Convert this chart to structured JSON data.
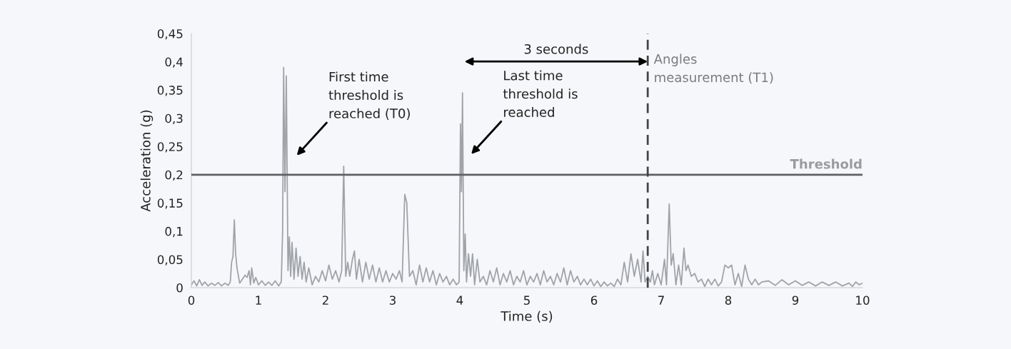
{
  "chart_data": {
    "type": "line",
    "xlabel": "Time (s)",
    "ylabel": "Acceleration (g)",
    "xlim": [
      0,
      10
    ],
    "xticks": [
      0,
      1,
      2,
      3,
      4,
      5,
      6,
      7,
      8,
      9,
      10
    ],
    "ylim": [
      0,
      0.45
    ],
    "yticks": [
      0,
      {
        "value": 0.05,
        "label": "0,05"
      },
      {
        "value": 0.1,
        "label": "0,1"
      },
      {
        "value": 0.15,
        "label": "0,15"
      },
      {
        "value": 0.2,
        "label": "0,2"
      },
      {
        "value": 0.25,
        "label": "0,25"
      },
      {
        "value": 0.3,
        "label": "0,3"
      },
      {
        "value": 0.35,
        "label": "0,35"
      },
      {
        "value": 0.4,
        "label": "0,4"
      },
      {
        "value": 0.45,
        "label": "0,45"
      }
    ],
    "grid": false,
    "marker": "none",
    "line_style": "solid",
    "series": [
      {
        "color": "#a0a3a8",
        "x": [
          0,
          0.04,
          0.08,
          0.12,
          0.16,
          0.2,
          0.25,
          0.3,
          0.35,
          0.4,
          0.45,
          0.5,
          0.55,
          0.58,
          0.6,
          0.62,
          0.64,
          0.66,
          0.68,
          0.72,
          0.76,
          0.8,
          0.83,
          0.86,
          0.88,
          0.9,
          0.93,
          0.96,
          1.0,
          1.05,
          1.1,
          1.15,
          1.2,
          1.25,
          1.3,
          1.34,
          1.36,
          1.375,
          1.395,
          1.415,
          1.44,
          1.46,
          1.48,
          1.5,
          1.53,
          1.56,
          1.59,
          1.62,
          1.65,
          1.68,
          1.71,
          1.75,
          1.8,
          1.85,
          1.9,
          1.95,
          2.0,
          2.05,
          2.1,
          2.15,
          2.2,
          2.24,
          2.27,
          2.3,
          2.33,
          2.36,
          2.4,
          2.43,
          2.46,
          2.5,
          2.55,
          2.6,
          2.65,
          2.7,
          2.75,
          2.8,
          2.85,
          2.9,
          2.95,
          3.0,
          3.05,
          3.1,
          3.14,
          3.18,
          3.21,
          3.25,
          3.3,
          3.35,
          3.4,
          3.45,
          3.5,
          3.55,
          3.6,
          3.65,
          3.7,
          3.75,
          3.8,
          3.85,
          3.9,
          3.95,
          3.99,
          4.01,
          4.025,
          4.04,
          4.06,
          4.08,
          4.1,
          4.13,
          4.16,
          4.19,
          4.22,
          4.26,
          4.3,
          4.35,
          4.4,
          4.45,
          4.5,
          4.55,
          4.6,
          4.65,
          4.7,
          4.75,
          4.8,
          4.85,
          4.9,
          4.95,
          5.0,
          5.05,
          5.1,
          5.15,
          5.2,
          5.25,
          5.3,
          5.35,
          5.4,
          5.45,
          5.5,
          5.55,
          5.6,
          5.65,
          5.7,
          5.75,
          5.8,
          5.85,
          5.9,
          5.95,
          6.0,
          6.05,
          6.1,
          6.15,
          6.2,
          6.25,
          6.3,
          6.35,
          6.4,
          6.45,
          6.5,
          6.55,
          6.6,
          6.65,
          6.7,
          6.73,
          6.76,
          6.8,
          6.84,
          6.87,
          6.9,
          6.95,
          7.0,
          7.05,
          7.08,
          7.12,
          7.15,
          7.18,
          7.22,
          7.26,
          7.3,
          7.34,
          7.37,
          7.4,
          7.45,
          7.5,
          7.55,
          7.6,
          7.65,
          7.7,
          7.75,
          7.8,
          7.85,
          7.9,
          7.95,
          8.0,
          8.05,
          8.1,
          8.15,
          8.2,
          8.25,
          8.3,
          8.35,
          8.4,
          8.45,
          8.5,
          8.6,
          8.7,
          8.8,
          8.9,
          9.0,
          9.1,
          9.2,
          9.3,
          9.4,
          9.5,
          9.6,
          9.7,
          9.8,
          9.85,
          9.9,
          9.95,
          10
        ],
        "values": [
          0.005,
          0.012,
          0.003,
          0.014,
          0.004,
          0.01,
          0.003,
          0.008,
          0.004,
          0.009,
          0.003,
          0.008,
          0.004,
          0.01,
          0.045,
          0.055,
          0.12,
          0.06,
          0.035,
          0.008,
          0.015,
          0.022,
          0.018,
          0.03,
          0.005,
          0.035,
          0.008,
          0.018,
          0.005,
          0.012,
          0.004,
          0.01,
          0.004,
          0.012,
          0.003,
          0.01,
          0.1,
          0.39,
          0.17,
          0.375,
          0.03,
          0.09,
          0.02,
          0.08,
          0.015,
          0.07,
          0.02,
          0.055,
          0.015,
          0.045,
          0.01,
          0.035,
          0.005,
          0.02,
          0.01,
          0.03,
          0.012,
          0.04,
          0.015,
          0.03,
          0.01,
          0.03,
          0.215,
          0.02,
          0.045,
          0.02,
          0.05,
          0.065,
          0.015,
          0.05,
          0.01,
          0.045,
          0.015,
          0.04,
          0.01,
          0.035,
          0.01,
          0.03,
          0.01,
          0.025,
          0.015,
          0.03,
          0.01,
          0.165,
          0.15,
          0.02,
          0.03,
          0.005,
          0.04,
          0.01,
          0.035,
          0.01,
          0.03,
          0.005,
          0.025,
          0.01,
          0.02,
          0.005,
          0.015,
          0.005,
          0.01,
          0.29,
          0.17,
          0.345,
          0.03,
          0.095,
          0.01,
          0.06,
          0.02,
          0.06,
          0.005,
          0.05,
          0.01,
          0.02,
          0.005,
          0.03,
          0.01,
          0.035,
          0.005,
          0.025,
          0.01,
          0.03,
          0.005,
          0.02,
          0.01,
          0.03,
          0.005,
          0.02,
          0.01,
          0.025,
          0.005,
          0.03,
          0.01,
          0.02,
          0.005,
          0.025,
          0.01,
          0.035,
          0.005,
          0.03,
          0.01,
          0.02,
          0.005,
          0.015,
          0.005,
          0.015,
          0.003,
          0.012,
          0.002,
          0.01,
          0.003,
          0.008,
          0.002,
          0.015,
          0.005,
          0.045,
          0.01,
          0.06,
          0.02,
          0.05,
          0.01,
          0.065,
          0.01,
          0.02,
          0.01,
          0.03,
          0.005,
          0.025,
          0.005,
          0.05,
          0.005,
          0.148,
          0.04,
          0.06,
          0.005,
          0.04,
          0.005,
          0.07,
          0.03,
          0.04,
          0.02,
          0.025,
          0.01,
          0.015,
          0.002,
          0.015,
          0.005,
          0.015,
          0.003,
          0.01,
          0.04,
          0.035,
          0.04,
          0.005,
          0.025,
          0.002,
          0.04,
          0.015,
          0.005,
          0.015,
          0.005,
          0.01,
          0.012,
          0.004,
          0.014,
          0.005,
          0.012,
          0.004,
          0.01,
          0.003,
          0.01,
          0.004,
          0.01,
          0.003,
          0.008,
          0.002,
          0.01,
          0.005,
          0.008
        ]
      }
    ],
    "ref_lines": [
      {
        "axis": "y",
        "value": 0.2,
        "label": "Threshold",
        "color": "#5f6063",
        "line_style": "solid"
      },
      {
        "axis": "x",
        "value": 6.8,
        "label": "Angles\nmeasurement (T1)",
        "color": "#444444",
        "line_style": "dashed"
      }
    ],
    "annotations": [
      "First time\nthreshold is\nreached (T0)",
      "Last time\nthreshold is\nreached",
      "3 seconds"
    ]
  }
}
